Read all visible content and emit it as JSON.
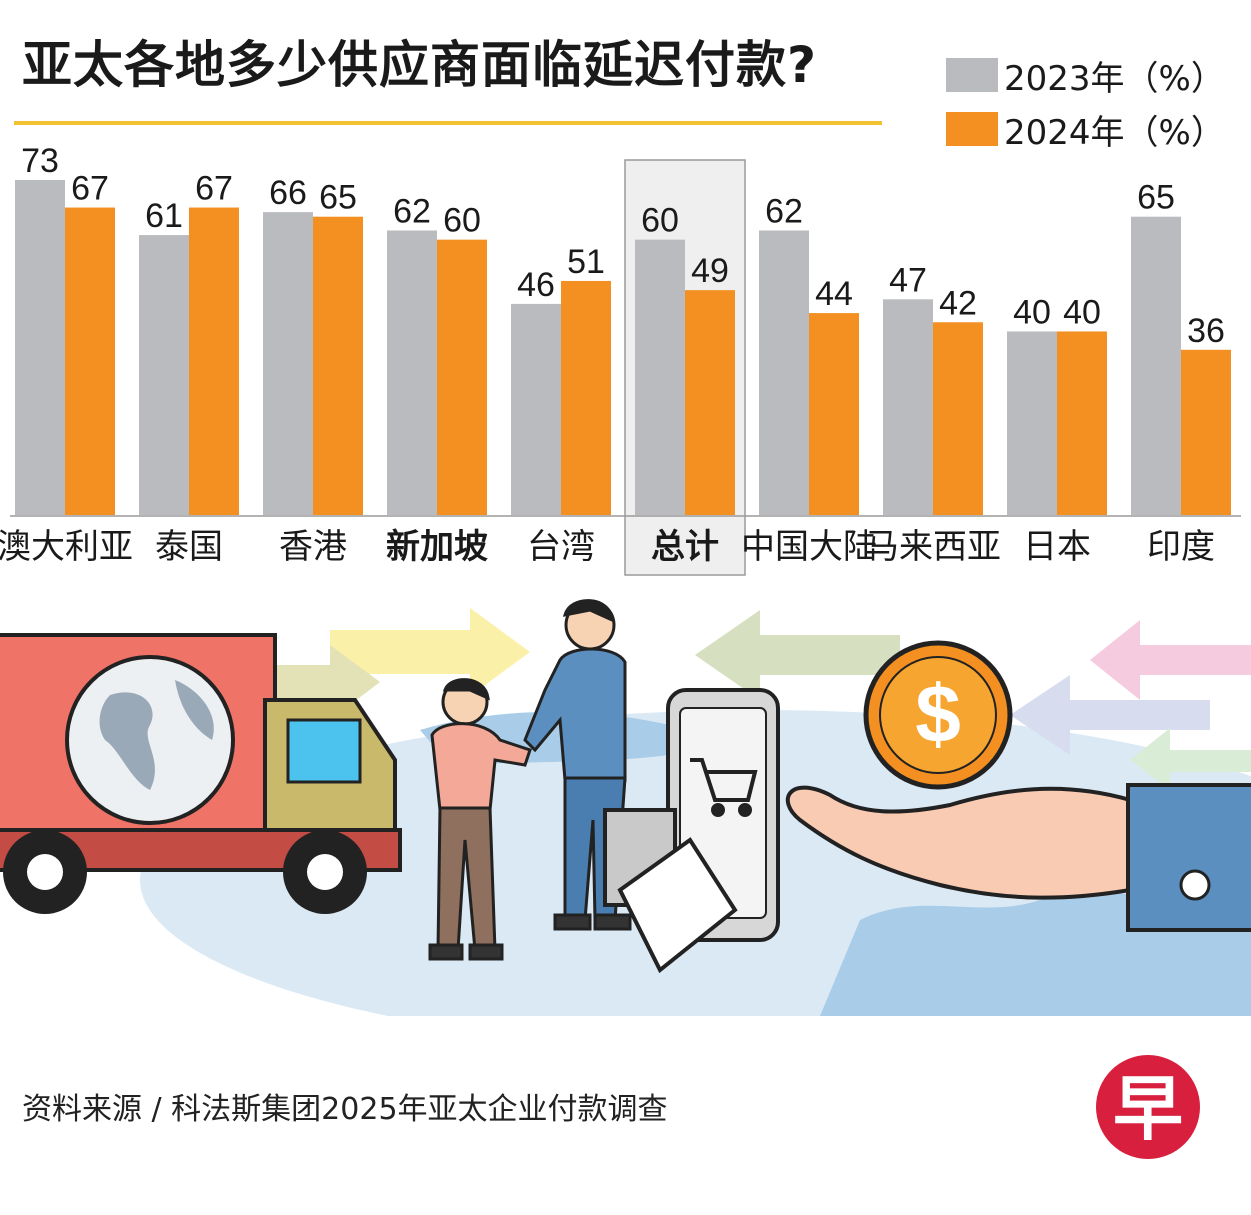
{
  "title": "亚太各地多少供应商面临延迟付款?",
  "legend": [
    {
      "label": "2023年（%）",
      "color": "#b9bbbe"
    },
    {
      "label": "2024年（%）",
      "color": "#f39021"
    }
  ],
  "source": "资料来源 / 科法斯集团2025年亚太企业付款调查",
  "logo_text": "早",
  "chart_data": {
    "type": "bar",
    "categories": [
      "澳大利亚",
      "泰国",
      "香港",
      "新加坡",
      "台湾",
      "总计",
      "中国大陆",
      "马来西亚",
      "日本",
      "印度"
    ],
    "bold_categories": [
      "新加坡",
      "总计"
    ],
    "highlighted_category": "总计",
    "series": [
      {
        "name": "2023年（%）",
        "color": "#b9bbbe",
        "values": [
          73,
          61,
          66,
          62,
          46,
          60,
          62,
          47,
          40,
          65
        ]
      },
      {
        "name": "2024年（%）",
        "color": "#f39021",
        "values": [
          67,
          67,
          65,
          60,
          51,
          49,
          44,
          42,
          40,
          36
        ]
      }
    ],
    "ylim": [
      0,
      73
    ],
    "grid": false,
    "legend_position": "top-right"
  }
}
